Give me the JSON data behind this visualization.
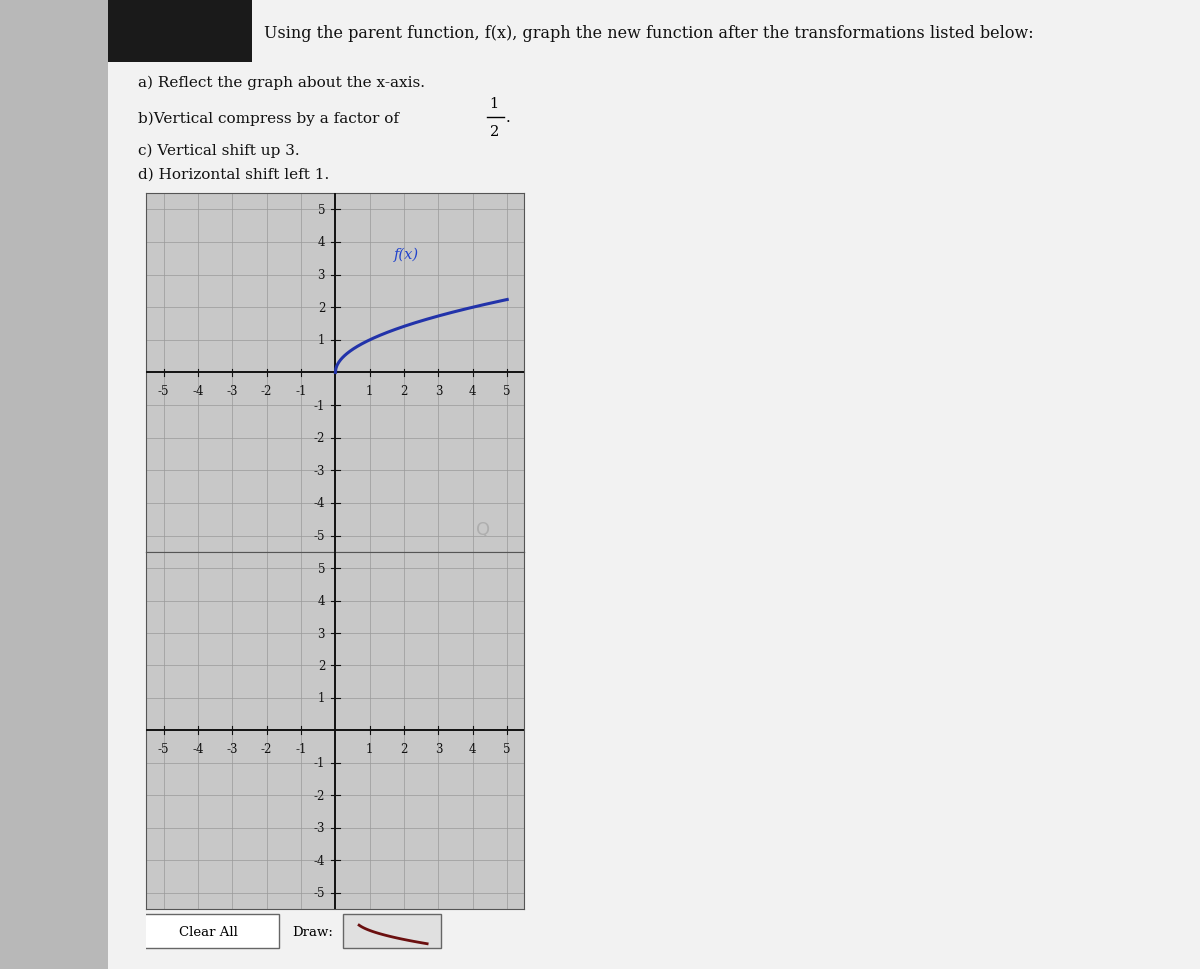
{
  "title_text": "Using the parent function, f(x), graph the new function after the transformations listed below:",
  "instruction_a": "a) Reflect the graph about the x-axis.",
  "instruction_b": "b)Vertical compress by a factor of ",
  "instruction_c": "c) Vertical shift up 3.",
  "instruction_d": "d) Horizontal shift left 1.",
  "bg_color": "#c8c8c8",
  "panel_bg": "#d4d4d4",
  "grid_bg": "#c0c0c0",
  "grid_color": "#888888",
  "axis_color": "#111111",
  "curve_color": "#2233aa",
  "label_color": "#2244cc",
  "xlim": [
    -5.5,
    5.5
  ],
  "ylim": [
    -5.5,
    5.5
  ],
  "xticks": [
    -5,
    -4,
    -3,
    -2,
    -1,
    1,
    2,
    3,
    4,
    5
  ],
  "yticks": [
    -5,
    -4,
    -3,
    -2,
    -1,
    1,
    2,
    3,
    4,
    5
  ],
  "graph1_label": "f(x)",
  "button_clear_text": "Clear All",
  "button_draw_text": "Draw:"
}
